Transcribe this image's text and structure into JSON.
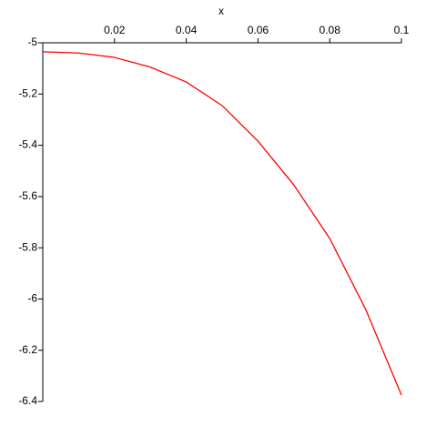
{
  "chart_data": {
    "type": "line",
    "xlabel": "x",
    "x": [
      0,
      0.01,
      0.02,
      0.03,
      0.04,
      0.05,
      0.06,
      0.07,
      0.08,
      0.09,
      0.1
    ],
    "series": [
      {
        "color": "#ff0000",
        "values": [
          -5.035,
          -5.04,
          -5.057,
          -5.095,
          -5.153,
          -5.245,
          -5.384,
          -5.555,
          -5.764,
          -6.04,
          -6.375
        ]
      }
    ],
    "xlim": [
      0,
      0.1
    ],
    "xticks": [
      0.02,
      0.04,
      0.06,
      0.08,
      0.1
    ],
    "ylim": [
      -5,
      -6.4
    ],
    "yticks": [
      -5,
      -5.2,
      -5.4,
      -5.6,
      -5.8,
      -6,
      -6.2,
      -6.4
    ]
  }
}
